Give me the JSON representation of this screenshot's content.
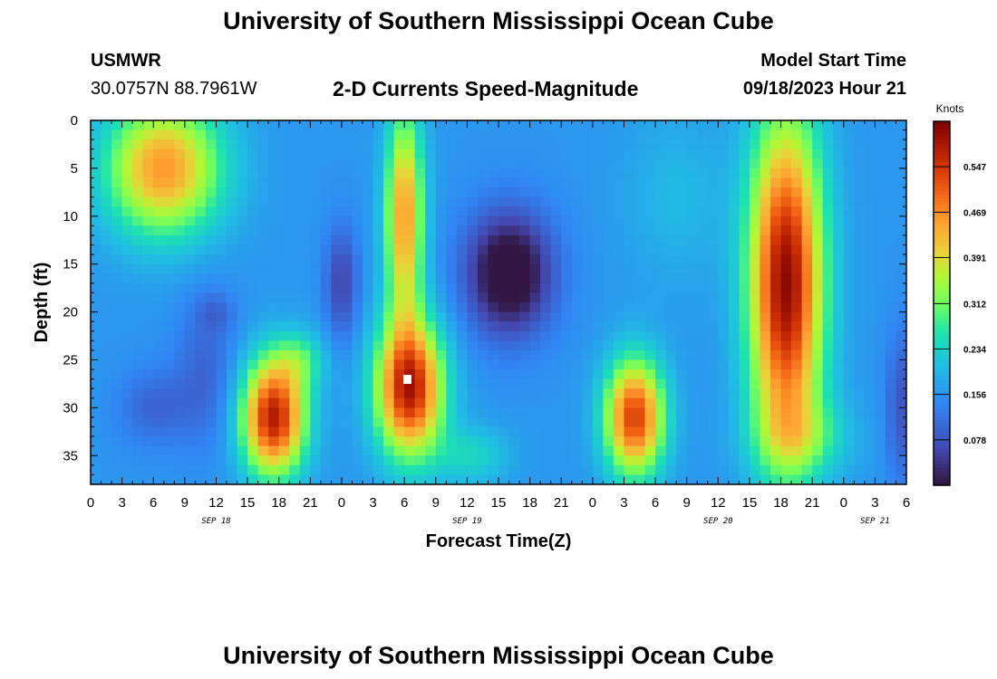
{
  "page": {
    "title_top": "University of Southern Mississippi Ocean Cube",
    "title_bottom": "University of Southern Mississippi Ocean Cube",
    "station_id": "USMWR",
    "coordinates": "30.0757N  88.7961W",
    "plot_subtitle": "2-D Currents Speed-Magnitude",
    "model_start_label": "Model Start Time",
    "model_start_value": "09/18/2023 Hour 21"
  },
  "chart_data": {
    "type": "heatmap",
    "title": "2-D Currents Speed-Magnitude",
    "xlabel": "Forecast Time(Z)",
    "ylabel": "Depth (ft)",
    "x_range_hours": [
      0,
      78
    ],
    "x_tick_labels": [
      "0",
      "3",
      "6",
      "9",
      "12",
      "15",
      "18",
      "21",
      "0",
      "3",
      "6",
      "9",
      "12",
      "15",
      "18",
      "21",
      "0",
      "3",
      "6",
      "9",
      "12",
      "15",
      "18",
      "21",
      "0",
      "3",
      "6"
    ],
    "x_date_labels": [
      {
        "label": "SEP 18",
        "hour": 12
      },
      {
        "label": "SEP 19",
        "hour": 36
      },
      {
        "label": "SEP 20",
        "hour": 60
      },
      {
        "label": "SEP 21",
        "hour": 75
      }
    ],
    "y_range_ft": [
      0,
      38
    ],
    "y_ticks": [
      0,
      5,
      10,
      15,
      20,
      25,
      30,
      35
    ],
    "colorbar": {
      "label": "Knots",
      "range": [
        0,
        0.625
      ],
      "ticks": [
        "0.078",
        "0.156",
        "0.234",
        "0.312",
        "0.391",
        "0.469",
        "0.547"
      ],
      "tick_values": [
        0.078,
        0.156,
        0.234,
        0.312,
        0.391,
        0.469,
        0.547
      ]
    },
    "features": [
      {
        "name": "upper-left-max",
        "x_hour": 7,
        "depth_ft": 5,
        "value": 0.44
      },
      {
        "name": "max-near-hour-18",
        "x_hour": 17.5,
        "depth_ft": 31,
        "value": 0.58
      },
      {
        "name": "max-near-hour-30",
        "x_hour": 30.5,
        "depth_ft": 28,
        "value": 0.6
      },
      {
        "name": "min-near-hour-40",
        "x_hour": 40,
        "depth_ft": 16,
        "value": 0.02
      },
      {
        "name": "max-near-hour-52",
        "x_hour": 52,
        "depth_ft": 31,
        "value": 0.55
      },
      {
        "name": "max-near-hour-66",
        "x_hour": 66,
        "depth_ft": 17,
        "value": 0.6
      }
    ]
  }
}
